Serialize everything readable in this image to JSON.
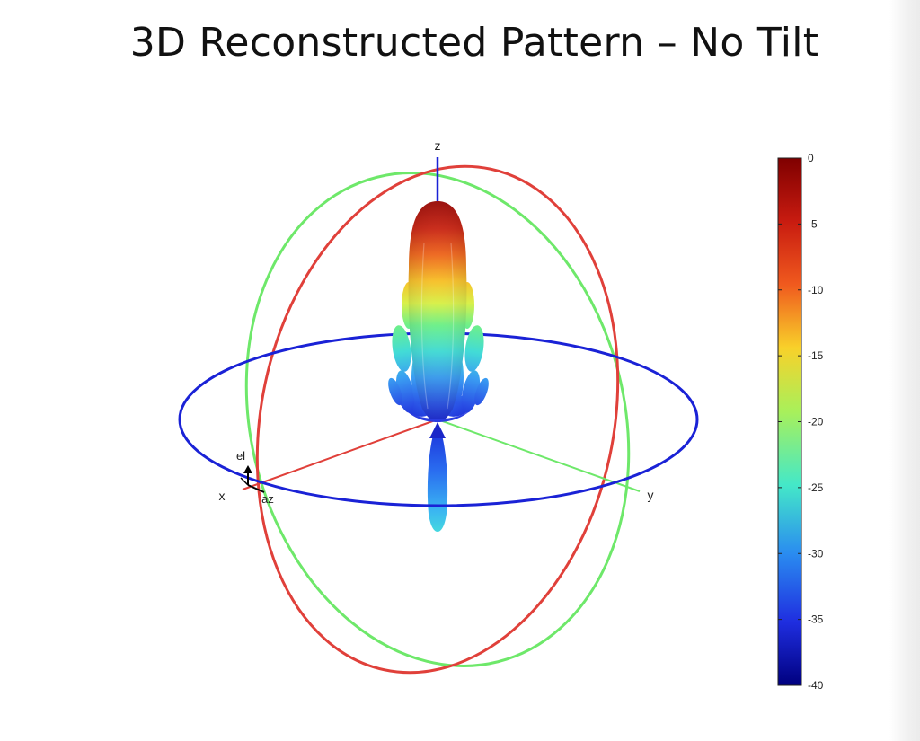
{
  "slide": {
    "title": "3D Reconstructed Pattern – No Tilt"
  },
  "chart_data": {
    "type": "3d radiation pattern",
    "axes": {
      "x_label": "x",
      "y_label": "y",
      "z_label": "z",
      "el_label": "el",
      "az_label": "az"
    },
    "colorbar": {
      "range": [
        -40,
        0
      ],
      "ticks": [
        0,
        -5,
        -10,
        -15,
        -20,
        -25,
        -30,
        -35,
        -40
      ],
      "tick_labels": [
        "0",
        "-5",
        "-10",
        "-15",
        "-20",
        "-25",
        "-30",
        "-35",
        "-40"
      ],
      "colormap": "jet"
    },
    "great_circles": [
      {
        "plane": "xy",
        "color": "#1a22d6"
      },
      {
        "plane": "xz",
        "color": "#e0403a"
      },
      {
        "plane": "yz",
        "color": "#6ee86a"
      }
    ],
    "pattern": {
      "main_lobe_direction": "+z",
      "main_lobe_peak_db": 0,
      "back_lobe_direction": "-z",
      "back_lobe_level_db": -30
    }
  }
}
